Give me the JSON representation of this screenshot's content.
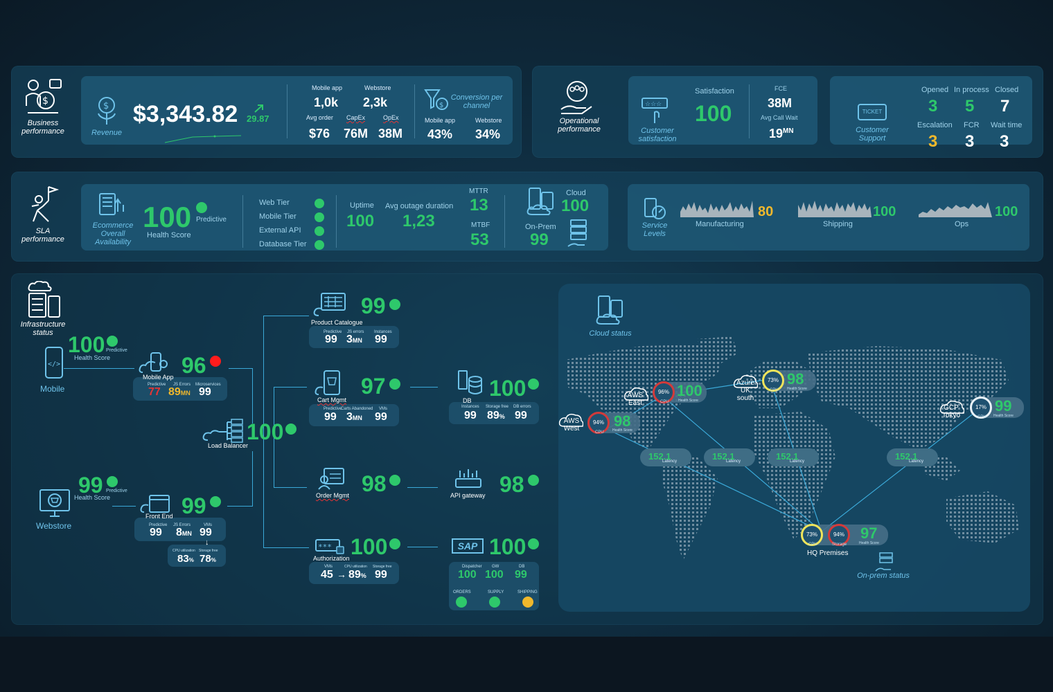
{
  "business": {
    "title": "Business performance",
    "revenue_label": "Revenue",
    "revenue": "$3,343.82",
    "revenue_delta": "29.87",
    "mobile_app_label": "Mobile app",
    "webstore_label": "Webstore",
    "mobile_app_value": "1,0k",
    "webstore_value": "2,3k",
    "avg_order_label": "Avg order",
    "capex_label": "CapEx",
    "opex_label": "OpEx",
    "avg_order_value": "$76",
    "capex_value": "76M",
    "opex_value": "38M",
    "conversion_label": "Conversion per channel",
    "conv_mobile_label": "Mobile app",
    "conv_webstore_label": "Webstore",
    "conv_mobile_value": "43%",
    "conv_webstore_value": "34%"
  },
  "operational": {
    "title": "Operational performance",
    "customer_satisfaction_label": "Customer satisfaction",
    "satisfaction_label": "Satisfaction",
    "satisfaction_value": "100",
    "fce_label": "FCE",
    "fce_value": "38M",
    "avg_call_wait_label": "Avg  Call Wait",
    "avg_call_wait_value": "19",
    "avg_call_wait_unit": "MN",
    "ticket_label": "TICKET",
    "customer_support_label": "Customer Support",
    "opened_label": "Opened",
    "in_process_label": "In process",
    "closed_label": "Closed",
    "opened_value": "3",
    "in_process_value": "5",
    "closed_value": "7",
    "escalation_label": "Escalation",
    "fcr_label": "FCR",
    "wait_time_label": "Wait time",
    "escalation_value": "3",
    "fcr_value": "3",
    "wait_time_value": "3"
  },
  "sla": {
    "title": "SLA performance",
    "availability_label": "Ecommerce Overall Availability",
    "health_value": "100",
    "predictive_label": "Predictive",
    "health_score_label": "Health Score",
    "tiers": [
      "Web Tier",
      "Mobile Tier",
      "External API",
      "Database Tier"
    ],
    "uptime_label": "Uptime",
    "uptime_value": "100",
    "avg_outage_label": "Avg outage duration",
    "avg_outage_value": "1,23",
    "mttr_label": "MTTR",
    "mttr_value": "13",
    "mtbf_label": "MTBF",
    "mtbf_value": "53",
    "cloud_label": "Cloud",
    "cloud_value": "100",
    "onprem_label": "On-Prem",
    "onprem_value": "99",
    "service_levels_label": "Service Levels",
    "services": [
      {
        "name": "Manufacturing",
        "value": "80",
        "color": "#f0b82c"
      },
      {
        "name": "Shipping",
        "value": "100",
        "color": "#2ec86b"
      },
      {
        "name": "Ops",
        "value": "100",
        "color": "#2ec86b"
      }
    ]
  },
  "infra": {
    "title": "Infrastructure status",
    "mobile": {
      "label": "Mobile",
      "value": "100",
      "predictive": "Predictive",
      "health": "Health Score"
    },
    "webstore": {
      "label": "Webstore",
      "value": "99",
      "predictive": "Predictive",
      "health": "Health Score"
    },
    "mobile_app": {
      "label": "Mobile App",
      "value": "96",
      "predictive_label": "Predictive",
      "js_label": "JS Errors",
      "ms_label": "Microservices",
      "predictive": "77",
      "js": "89",
      "js_unit": "MN",
      "ms": "99"
    },
    "front_end": {
      "label": "Front End",
      "value": "99",
      "predictive_label": "Predictive",
      "js_label": "JS Errors",
      "vms_label": "VMs",
      "predictive": "99",
      "js": "8",
      "js_unit": "MN",
      "vms": "99",
      "cpu_label": "CPU utilization",
      "storage_label": "Storage free",
      "cpu": "83",
      "storage": "78"
    },
    "load_balancer": {
      "label": "Load Balancer",
      "value": "100"
    },
    "product_catalogue": {
      "label": "Product Catalogue",
      "value": "99",
      "predictive_label": "Predictive",
      "js_label": "JS errors",
      "inst_label": "Instances",
      "predictive": "99",
      "js": "3",
      "js_unit": "MN",
      "inst": "99"
    },
    "cart_mgmt": {
      "label": "Cart Mgmt",
      "value": "97",
      "predictive_label": "Predictive",
      "carts_label": "Carts Abandoned",
      "vms_label": "VMs",
      "predictive": "99",
      "carts": "3",
      "carts_unit": "MN",
      "vms": "99"
    },
    "order_mgmt": {
      "label": "Order Mgmt",
      "value": "98"
    },
    "authorization": {
      "label": "Authorization",
      "value": "100",
      "vms_label": "VMs",
      "cpu_label": "CPU utilization",
      "storage_label": "Storage free",
      "vms": "45",
      "cpu": "89",
      "storage": "99"
    },
    "db": {
      "label": "DB",
      "value": "100",
      "inst_label": "Instances",
      "storage_label": "Storage free",
      "err_label": "DB errors",
      "inst": "99",
      "storage": "89",
      "err": "99"
    },
    "api_gateway": {
      "label": "API gateway",
      "value": "98"
    },
    "sap": {
      "label": "SAP",
      "value": "100",
      "disp_label": "Dispatcher",
      "gw_label": "GW",
      "db_label": "DB",
      "disp": "100",
      "gw": "100",
      "db": "99",
      "orders_label": "ORDERS",
      "supply_label": "SUPPLY",
      "shipping_label": "SHIPPING"
    }
  },
  "map": {
    "cloud_status_label": "Cloud status",
    "onprem_status_label": "On-prem status",
    "latency_value": "152.1",
    "latency_label": "Latency",
    "cpu_label": "CPU",
    "health_label": "Health Score",
    "storage_label": "Storage",
    "aws_east": {
      "name": "AWS East",
      "cpu": "96%",
      "health": "100"
    },
    "aws_west": {
      "name": "AWS West",
      "cpu": "94%",
      "health": "98"
    },
    "azure": {
      "name": "Azure UK south",
      "cpu": "73%",
      "health": "98"
    },
    "gcp": {
      "name": "GCP Tokyo",
      "cpu": "17%",
      "health": "99"
    },
    "hq": {
      "name": "HQ Premises",
      "cpu": "73%",
      "storage": "94%",
      "health": "97"
    }
  }
}
